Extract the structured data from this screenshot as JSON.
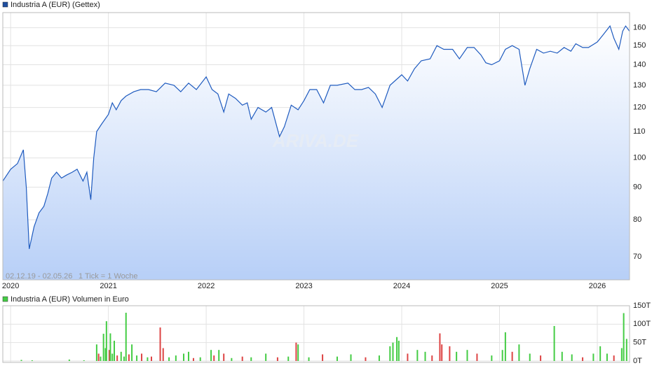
{
  "chart_data": [
    {
      "type": "line",
      "title": "Industria A (EUR) (Gettex)",
      "date_range": "02.12.19 - 02.05.26",
      "tick_note": "1 Tick = 1 Woche",
      "watermark": "ARIVA.DE",
      "color": "#1f5bbf",
      "log_scale": true,
      "grid": true,
      "x": [
        2019.92,
        2020.0,
        2020.07,
        2020.13,
        2020.16,
        2020.19,
        2020.24,
        2020.29,
        2020.34,
        2020.38,
        2020.42,
        2020.47,
        2020.52,
        2020.57,
        2020.63,
        2020.68,
        2020.74,
        2020.78,
        2020.82,
        2020.85,
        2020.88,
        2020.93,
        2021.0,
        2021.04,
        2021.08,
        2021.13,
        2021.18,
        2021.26,
        2021.33,
        2021.41,
        2021.49,
        2021.58,
        2021.67,
        2021.74,
        2021.82,
        2021.9,
        2022.0,
        2022.06,
        2022.12,
        2022.18,
        2022.23,
        2022.3,
        2022.37,
        2022.42,
        2022.46,
        2022.53,
        2022.61,
        2022.67,
        2022.75,
        2022.8,
        2022.87,
        2022.94,
        2023.0,
        2023.06,
        2023.13,
        2023.2,
        2023.27,
        2023.34,
        2023.45,
        2023.52,
        2023.59,
        2023.66,
        2023.73,
        2023.8,
        2023.88,
        2024.0,
        2024.06,
        2024.13,
        2024.2,
        2024.29,
        2024.36,
        2024.43,
        2024.52,
        2024.59,
        2024.67,
        2024.74,
        2024.81,
        2024.86,
        2024.92,
        2025.0,
        2025.06,
        2025.13,
        2025.2,
        2025.26,
        2025.31,
        2025.38,
        2025.45,
        2025.52,
        2025.59,
        2025.66,
        2025.73,
        2025.78,
        2025.85,
        2025.91,
        2026.0,
        2026.06,
        2026.13,
        2026.17,
        2026.22,
        2026.26,
        2026.29,
        2026.33
      ],
      "values": [
        92,
        96,
        98,
        103,
        90,
        72,
        78,
        82,
        84,
        88,
        93,
        95,
        93,
        94,
        95,
        96,
        92,
        95,
        86,
        100,
        110,
        113,
        117,
        122,
        119,
        123,
        125,
        127,
        128,
        128,
        127,
        131,
        130,
        127,
        131,
        128,
        134,
        128,
        126,
        118,
        126,
        124,
        121,
        122,
        115,
        120,
        118,
        120,
        108,
        112,
        121,
        119,
        123,
        128,
        128,
        122,
        130,
        130,
        131,
        128,
        128,
        129,
        126,
        120,
        130,
        135,
        132,
        138,
        142,
        143,
        150,
        148,
        148,
        143,
        149,
        149,
        145,
        141,
        140,
        142,
        148,
        150,
        148,
        130,
        138,
        148,
        146,
        147,
        146,
        149,
        147,
        151,
        149,
        149,
        152,
        156,
        161,
        154,
        148,
        158,
        161,
        158
      ],
      "xlim": [
        2019.92,
        2026.33
      ],
      "xticks": [
        2020,
        2021,
        2022,
        2023,
        2024,
        2025,
        2026
      ],
      "ylim": [
        64.4,
        169
      ],
      "yticks": [
        70,
        80,
        90,
        100,
        110,
        120,
        130,
        140,
        150,
        160
      ]
    },
    {
      "type": "bar",
      "title": "Industria A (EUR) Volumen in Euro",
      "color": "#33bb33",
      "x": [
        2020.11,
        2020.22,
        2020.6,
        2020.75,
        2020.88,
        2020.9,
        2020.92,
        2020.95,
        2020.97,
        2020.98,
        2021.01,
        2021.02,
        2021.04,
        2021.06,
        2021.09,
        2021.13,
        2021.16,
        2021.18,
        2021.21,
        2021.24,
        2021.29,
        2021.34,
        2021.4,
        2021.44,
        2021.53,
        2021.56,
        2021.62,
        2021.69,
        2021.77,
        2021.82,
        2021.87,
        2021.94,
        2022.05,
        2022.08,
        2022.13,
        2022.18,
        2022.26,
        2022.37,
        2022.46,
        2022.61,
        2022.73,
        2022.84,
        2022.92,
        2022.94,
        2023.05,
        2023.19,
        2023.34,
        2023.48,
        2023.63,
        2023.77,
        2023.88,
        2023.91,
        2023.95,
        2023.97,
        2024.06,
        2024.16,
        2024.24,
        2024.31,
        2024.39,
        2024.41,
        2024.49,
        2024.56,
        2024.67,
        2024.77,
        2024.92,
        2025.03,
        2025.06,
        2025.13,
        2025.2,
        2025.31,
        2025.42,
        2025.56,
        2025.64,
        2025.74,
        2025.85,
        2025.96,
        2026.03,
        2026.1,
        2026.17,
        2026.25,
        2026.27,
        2026.3
      ],
      "values": [
        3000,
        2000,
        4000,
        2000,
        45000,
        20000,
        12000,
        74000,
        35000,
        108000,
        30000,
        75000,
        20000,
        55000,
        15000,
        25000,
        12000,
        131000,
        18000,
        45000,
        15000,
        20000,
        10000,
        12000,
        91000,
        35000,
        10000,
        15000,
        20000,
        25000,
        8000,
        10000,
        30000,
        15000,
        30000,
        20000,
        8000,
        12000,
        10000,
        20000,
        10000,
        12000,
        50000,
        45000,
        10000,
        18000,
        12000,
        18000,
        10000,
        15000,
        40000,
        50000,
        65000,
        55000,
        20000,
        30000,
        25000,
        15000,
        75000,
        45000,
        40000,
        25000,
        30000,
        20000,
        15000,
        30000,
        78000,
        25000,
        45000,
        20000,
        15000,
        95000,
        25000,
        18000,
        10000,
        20000,
        40000,
        20000,
        15000,
        35000,
        130000,
        60000
      ],
      "colors": [
        "#44cc44",
        "#44cc44",
        "#44cc44",
        "#44cc44",
        "#44cc44",
        "#dd4444",
        "#44cc44",
        "#44cc44",
        "#44cc44",
        "#44cc44",
        "#dd4444",
        "#44cc44",
        "#44cc44",
        "#44cc44",
        "#dd4444",
        "#44cc44",
        "#44cc44",
        "#44cc44",
        "#dd4444",
        "#44cc44",
        "#44cc44",
        "#dd4444",
        "#44cc44",
        "#dd4444",
        "#dd4444",
        "#dd4444",
        "#44cc44",
        "#44cc44",
        "#44cc44",
        "#44cc44",
        "#dd4444",
        "#44cc44",
        "#44cc44",
        "#dd4444",
        "#44cc44",
        "#dd4444",
        "#44cc44",
        "#dd4444",
        "#44cc44",
        "#44cc44",
        "#dd4444",
        "#44cc44",
        "#dd4444",
        "#44cc44",
        "#44cc44",
        "#dd4444",
        "#44cc44",
        "#44cc44",
        "#dd4444",
        "#44cc44",
        "#44cc44",
        "#44cc44",
        "#44cc44",
        "#44cc44",
        "#dd4444",
        "#44cc44",
        "#44cc44",
        "#dd4444",
        "#dd4444",
        "#dd4444",
        "#dd4444",
        "#44cc44",
        "#44cc44",
        "#dd4444",
        "#44cc44",
        "#44cc44",
        "#44cc44",
        "#dd4444",
        "#44cc44",
        "#44cc44",
        "#dd4444",
        "#44cc44",
        "#44cc44",
        "#44cc44",
        "#dd4444",
        "#44cc44",
        "#44cc44",
        "#44cc44",
        "#dd4444",
        "#44cc44",
        "#44cc44",
        "#44cc44"
      ],
      "xlim": [
        2019.92,
        2026.33
      ],
      "ylim": [
        0,
        150000
      ],
      "yticks": [
        {
          "value": 0,
          "label": "0T"
        },
        {
          "value": 50000,
          "label": "50T"
        },
        {
          "value": 100000,
          "label": "100T"
        },
        {
          "value": 150000,
          "label": "150T"
        }
      ]
    }
  ]
}
